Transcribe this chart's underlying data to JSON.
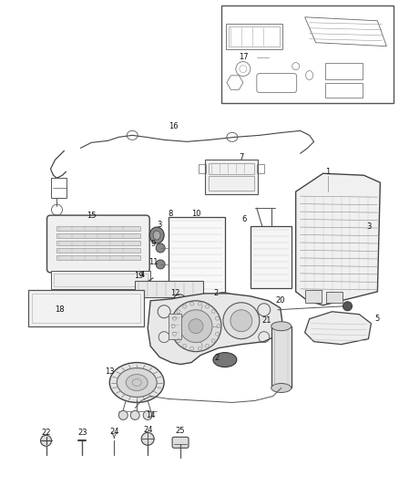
{
  "background": "#ffffff",
  "fig_w": 4.38,
  "fig_h": 5.33,
  "dpi": 100,
  "lc": "#2a2a2a",
  "label_fs": 6.0,
  "label_color": "#111111"
}
